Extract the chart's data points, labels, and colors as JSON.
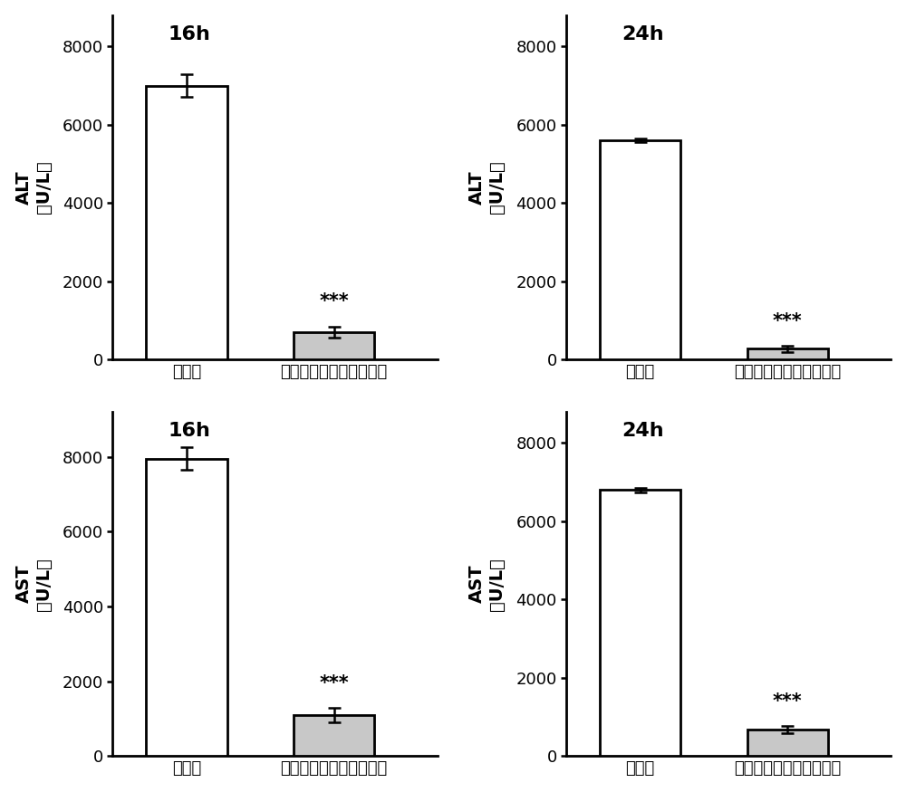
{
  "subplots": [
    {
      "title": "16h",
      "ylabel_top": "ALT",
      "ylabel_bot": "（U/L）",
      "ylim": [
        0,
        8800
      ],
      "yticks": [
        0,
        2000,
        4000,
        6000,
        8000
      ],
      "bar1_val": 7000,
      "bar1_err": 300,
      "bar1_color": "#ffffff",
      "bar2_val": 700,
      "bar2_err": 150,
      "bar2_color": "#c8c8c8",
      "sig_text": "***",
      "xlabel1": "空白组",
      "xlabel2": "异叶青兰颗粒冲剂治疗组"
    },
    {
      "title": "24h",
      "ylabel_top": "ALT",
      "ylabel_bot": "（U/L）",
      "ylim": [
        0,
        8800
      ],
      "yticks": [
        0,
        2000,
        4000,
        6000,
        8000
      ],
      "bar1_val": 5600,
      "bar1_err": 50,
      "bar1_color": "#ffffff",
      "bar2_val": 280,
      "bar2_err": 80,
      "bar2_color": "#c8c8c8",
      "sig_text": "***",
      "xlabel1": "空白组",
      "xlabel2": "异叶青兰颗粒冲剂治疗组"
    },
    {
      "title": "16h",
      "ylabel_top": "AST",
      "ylabel_bot": "（U/L）",
      "ylim": [
        0,
        9200
      ],
      "yticks": [
        0,
        2000,
        4000,
        6000,
        8000
      ],
      "bar1_val": 7950,
      "bar1_err": 300,
      "bar1_color": "#ffffff",
      "bar2_val": 1100,
      "bar2_err": 200,
      "bar2_color": "#c8c8c8",
      "sig_text": "***",
      "xlabel1": "空白组",
      "xlabel2": "异叶青兰颗粒冲剂治疗组"
    },
    {
      "title": "24h",
      "ylabel_top": "AST",
      "ylabel_bot": "（U/L）",
      "ylim": [
        0,
        8800
      ],
      "yticks": [
        0,
        2000,
        4000,
        6000,
        8000
      ],
      "bar1_val": 6800,
      "bar1_err": 60,
      "bar1_color": "#ffffff",
      "bar2_val": 680,
      "bar2_err": 100,
      "bar2_color": "#c8c8c8",
      "sig_text": "***",
      "xlabel1": "空白组",
      "xlabel2": "异叶青兰颗粒冲剂治疗组"
    }
  ],
  "bar_width": 0.55,
  "bar_positions": [
    0.5,
    1.5
  ],
  "xlim": [
    0.0,
    2.2
  ],
  "title_fontsize": 16,
  "label_fontsize": 14,
  "tick_fontsize": 13,
  "sig_fontsize": 15,
  "xlabel_fontsize": 13,
  "linewidth": 2.0,
  "capsize": 5,
  "elinewidth": 1.8
}
